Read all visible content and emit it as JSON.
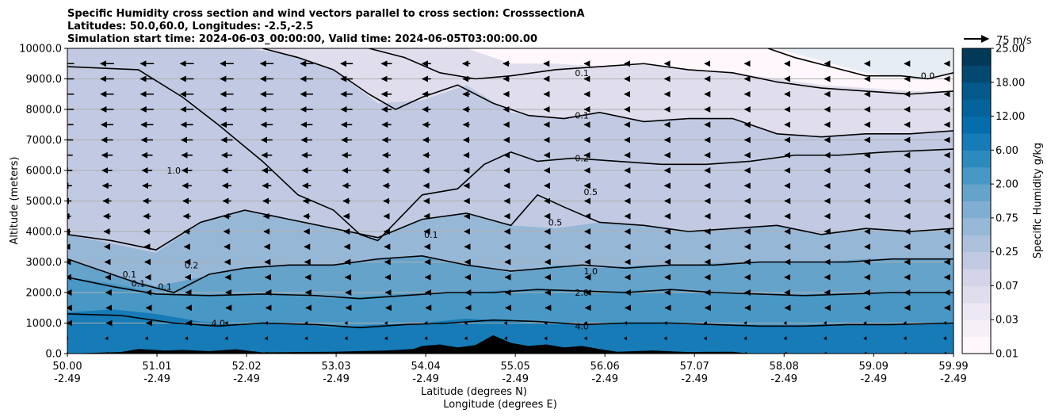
{
  "chart_data": {
    "type": "contourf",
    "title_lines": [
      "Specific Humidity cross section and wind vectors parallel to cross section: CrosssectionA",
      "Latitudes: 50.0,60.0, Longitudes: -2.5,-2.5",
      "Simulation start time: 2024-06-03_00:00:00, Valid time: 2024-06-05T03:00:00.00"
    ],
    "xlabel_lines": [
      "Latitude (degrees N)",
      "Longitude (degrees E)"
    ],
    "ylabel": "Altitude (meters)",
    "xlim": [
      50.0,
      59.99
    ],
    "ylim": [
      0,
      10000
    ],
    "x_ticks": [
      {
        "lat": "50.00",
        "lon": "-2.49",
        "value": 50.0
      },
      {
        "lat": "51.01",
        "lon": "-2.49",
        "value": 51.01
      },
      {
        "lat": "52.02",
        "lon": "-2.49",
        "value": 52.02
      },
      {
        "lat": "53.03",
        "lon": "-2.49",
        "value": 53.03
      },
      {
        "lat": "54.04",
        "lon": "-2.49",
        "value": 54.04
      },
      {
        "lat": "55.05",
        "lon": "-2.49",
        "value": 55.05
      },
      {
        "lat": "56.06",
        "lon": "-2.49",
        "value": 56.06
      },
      {
        "lat": "57.07",
        "lon": "-2.49",
        "value": 57.07
      },
      {
        "lat": "58.08",
        "lon": "-2.49",
        "value": 58.08
      },
      {
        "lat": "59.09",
        "lon": "-2.49",
        "value": 59.09
      },
      {
        "lat": "59.99",
        "lon": "-2.49",
        "value": 59.99
      }
    ],
    "y_ticks": [
      {
        "label": "0.0",
        "value": 0
      },
      {
        "label": "1000.0",
        "value": 1000
      },
      {
        "label": "2000.0",
        "value": 2000
      },
      {
        "label": "3000.0",
        "value": 3000
      },
      {
        "label": "4000.0",
        "value": 4000
      },
      {
        "label": "5000.0",
        "value": 5000
      },
      {
        "label": "6000.0",
        "value": 6000
      },
      {
        "label": "7000.0",
        "value": 7000
      },
      {
        "label": "8000.0",
        "value": 8000
      },
      {
        "label": "9000.0",
        "value": 9000
      },
      {
        "label": "10000.0",
        "value": 10000
      }
    ],
    "grid": "horizontal",
    "colorbar": {
      "label": "Specific Humidity g/kg",
      "levels": [
        0.01,
        0.02,
        0.03,
        0.05,
        0.07,
        0.1,
        0.25,
        0.5,
        0.75,
        1.0,
        2.0,
        4.0,
        6.0,
        9.0,
        12.0,
        15.0,
        18.0,
        21.0,
        25.0
      ],
      "tick_labels": [
        "0.01",
        "0.03",
        "0.07",
        "0.25",
        "0.75",
        "2.00",
        "6.00",
        "12.00",
        "18.00",
        "25.00"
      ],
      "tick_level_indices": [
        0,
        2,
        4,
        6,
        8,
        10,
        12,
        14,
        16,
        18
      ],
      "colormap": "PuBu"
    },
    "field_bands": [
      {
        "x": [
          50.0,
          50.5,
          51.0,
          51.5,
          52.0,
          52.5,
          53.0,
          53.5,
          54.0,
          54.5,
          55.0,
          55.5,
          56.0,
          56.5,
          57.0,
          57.5,
          58.0,
          58.5,
          59.0,
          59.5,
          59.99
        ],
        "upper_alt": [
          1350,
          1450,
          1300,
          1050,
          1000,
          1000,
          850,
          950,
          1000,
          1150,
          1050,
          950,
          1000,
          1000,
          950,
          950,
          900,
          950,
          950,
          1000,
          1000
        ],
        "value": 6.0
      },
      {
        "x": [
          50.0,
          50.5,
          51.0,
          51.5,
          52.0,
          52.5,
          53.0,
          53.5,
          54.0,
          54.5,
          55.0,
          55.5,
          56.0,
          56.5,
          57.0,
          57.5,
          58.0,
          58.5,
          59.0,
          59.5,
          59.99
        ],
        "upper_alt": [
          2500,
          2300,
          2000,
          1900,
          1950,
          1900,
          1800,
          1900,
          2000,
          2000,
          2100,
          2100,
          2000,
          2100,
          2000,
          1950,
          1900,
          1950,
          2000,
          2000,
          2000
        ],
        "value": 2.0
      },
      {
        "x": [
          50.0,
          50.5,
          51.0,
          51.5,
          52.0,
          52.5,
          53.0,
          53.5,
          54.0,
          54.5,
          55.0,
          55.5,
          56.0,
          56.5,
          57.0,
          57.5,
          58.0,
          58.5,
          59.0,
          59.5,
          59.99
        ],
        "upper_alt": [
          3100,
          2600,
          2200,
          2500,
          2800,
          2900,
          2900,
          3100,
          3200,
          2900,
          2650,
          2900,
          2800,
          2900,
          2900,
          3000,
          3000,
          3000,
          3100,
          3100,
          3100
        ],
        "value": 1.0
      },
      {
        "x": [
          50.0,
          50.5,
          51.0,
          51.5,
          52.0,
          52.5,
          53.0,
          53.5,
          54.0,
          54.5,
          55.0,
          55.5,
          56.0,
          56.5,
          57.0,
          57.5,
          58.0,
          58.5,
          59.0,
          59.5,
          59.99
        ],
        "upper_alt": [
          3900,
          3600,
          3300,
          4300,
          4700,
          4400,
          4100,
          3800,
          4400,
          4600,
          4200,
          4100,
          4300,
          4200,
          4000,
          4100,
          4200,
          3900,
          4100,
          4000,
          4100
        ],
        "value": 0.5
      },
      {
        "x": [
          50.0,
          50.5,
          51.0,
          51.5,
          52.0,
          52.5,
          53.0,
          53.5,
          54.0,
          54.5,
          55.0,
          55.5,
          56.0,
          56.5,
          57.0,
          57.5,
          58.0,
          58.5,
          59.0,
          59.5,
          59.99
        ],
        "upper_alt": [
          9400,
          9300,
          8500,
          7500,
          6500,
          5200,
          4600,
          3700,
          5300,
          6300,
          6600,
          6400,
          6400,
          6300,
          6200,
          6200,
          6500,
          6500,
          6600,
          6700,
          6700
        ],
        "value": 0.2
      },
      {
        "x": [
          50.0,
          50.5,
          51.0,
          51.5,
          52.0,
          52.5,
          53.0,
          53.5,
          54.0,
          54.5,
          55.0,
          55.5,
          56.0,
          56.5,
          57.0,
          57.5,
          58.0,
          58.5,
          59.0,
          59.5,
          59.99
        ],
        "upper_alt": [
          10000,
          10000,
          10000,
          10000,
          10000,
          9800,
          9300,
          8200,
          8300,
          8800,
          7900,
          7700,
          7900,
          7600,
          7700,
          7700,
          7200,
          7100,
          7200,
          7200,
          7300
        ],
        "value": 0.1
      },
      {
        "x": [
          50.0,
          50.5,
          51.0,
          51.5,
          52.0,
          52.5,
          53.0,
          53.5,
          54.0,
          54.5,
          55.0,
          55.5,
          56.0,
          56.5,
          57.0,
          57.5,
          58.0,
          58.5,
          59.0,
          59.5,
          59.99
        ],
        "upper_alt": [
          10000,
          10000,
          10000,
          10000,
          10000,
          10000,
          10000,
          10000,
          10000,
          10000,
          9500,
          9500,
          9400,
          9500,
          9300,
          9200,
          9000,
          8800,
          8700,
          8600,
          8600
        ],
        "value": 0.05
      },
      {
        "x": [
          50.0,
          50.5,
          51.0,
          51.5,
          52.0,
          52.5,
          53.0,
          53.5,
          54.0,
          54.5,
          55.0,
          55.5,
          56.0,
          56.5,
          57.0,
          57.5,
          58.0,
          58.5,
          59.0,
          59.5,
          59.99
        ],
        "upper_alt": [
          10000,
          10000,
          10000,
          10000,
          10000,
          10000,
          10000,
          10000,
          10000,
          10000,
          10000,
          10000,
          10000,
          10000,
          10000,
          10000,
          10000,
          9600,
          9200,
          9000,
          9100
        ],
        "value": 0.01
      }
    ],
    "contour_lines": [
      {
        "level": "4.0",
        "x": [
          50.0,
          50.6,
          51.2,
          51.7,
          52.2,
          52.8,
          53.3,
          53.8,
          54.3,
          54.8,
          55.3,
          55.8,
          56.3,
          56.8,
          57.3,
          57.8,
          58.3,
          58.8,
          59.3,
          59.99
        ],
        "alt": [
          1300,
          1250,
          1000,
          900,
          1000,
          950,
          850,
          950,
          1000,
          1100,
          1050,
          950,
          1000,
          1000,
          950,
          900,
          900,
          950,
          950,
          1000
        ]
      },
      {
        "level": "2.0",
        "x": [
          50.0,
          50.5,
          51.0,
          51.6,
          52.2,
          52.8,
          53.3,
          53.8,
          54.3,
          54.8,
          55.3,
          55.8,
          56.3,
          56.8,
          57.3,
          57.8,
          58.3,
          58.8,
          59.3,
          59.99
        ],
        "alt": [
          2500,
          2200,
          1950,
          1900,
          1950,
          1900,
          1800,
          1900,
          2000,
          2000,
          2100,
          2050,
          2000,
          2100,
          2000,
          1950,
          1900,
          1950,
          2000,
          2000
        ]
      },
      {
        "level": "1.0",
        "x": [
          50.0,
          50.4,
          50.8,
          51.2,
          51.6,
          52.0,
          52.5,
          53.0,
          53.5,
          54.0,
          54.5,
          55.0,
          55.4,
          55.8,
          56.3,
          56.8,
          57.3,
          57.8,
          58.3,
          58.8,
          59.3,
          59.99
        ],
        "alt": [
          3100,
          2700,
          2300,
          2000,
          2600,
          2800,
          2900,
          2900,
          3100,
          3200,
          2900,
          2700,
          2800,
          2900,
          2800,
          2900,
          2900,
          3000,
          3000,
          3000,
          3100,
          3100
        ]
      },
      {
        "level": "0.5",
        "x": [
          50.0,
          50.5,
          51.0,
          51.5,
          52.0,
          52.5,
          53.0,
          53.5,
          54.0,
          54.5,
          55.0,
          55.3,
          55.6,
          56.0,
          56.5,
          57.0,
          57.5,
          58.0,
          58.5,
          59.0,
          59.5,
          59.99
        ],
        "alt": [
          3900,
          3700,
          3400,
          4300,
          4700,
          4400,
          4100,
          3800,
          4400,
          4600,
          4200,
          5200,
          4800,
          4300,
          4200,
          4000,
          4100,
          4200,
          3900,
          4100,
          4000,
          4100
        ]
      },
      {
        "level": "0.2",
        "x": [
          50.0,
          50.8,
          51.3,
          51.7,
          52.2,
          52.6,
          53.0,
          53.3,
          53.5,
          53.7,
          54.0,
          54.4,
          54.7,
          55.0,
          55.3,
          55.7,
          56.2,
          56.7,
          57.2,
          57.7,
          58.2,
          58.7,
          59.2,
          59.99
        ],
        "alt": [
          9400,
          9300,
          8400,
          7500,
          6300,
          5200,
          4700,
          3900,
          3700,
          4300,
          5200,
          5400,
          6200,
          6600,
          6300,
          6400,
          6300,
          6200,
          6200,
          6300,
          6500,
          6500,
          6600,
          6700
        ]
      },
      {
        "level": "0.1",
        "x": [
          52.2,
          52.6,
          53.0,
          53.4,
          53.7,
          54.0,
          54.4,
          54.8,
          55.2,
          55.6,
          56.0,
          56.5,
          57.0,
          57.5,
          58.0,
          58.5,
          59.0,
          59.5,
          59.99
        ],
        "alt": [
          10000,
          9700,
          9300,
          8500,
          8000,
          8400,
          8800,
          8200,
          7800,
          7700,
          7900,
          7600,
          7700,
          7700,
          7200,
          7100,
          7200,
          7200,
          7300
        ]
      },
      {
        "level": "0.1",
        "x": [
          53.4,
          53.8,
          54.2,
          54.6,
          55.0,
          55.5,
          56.0,
          56.5,
          57.0,
          57.5,
          58.0,
          58.5,
          59.0,
          59.5,
          59.99
        ],
        "alt": [
          10000,
          9700,
          9200,
          9000,
          9100,
          9300,
          9400,
          9500,
          9300,
          9200,
          8900,
          8700,
          8600,
          8500,
          8600
        ]
      },
      {
        "level": "0.0",
        "x": [
          57.9,
          58.2,
          58.6,
          59.0,
          59.4,
          59.7,
          59.99
        ],
        "alt": [
          10000,
          9700,
          9400,
          9100,
          9100,
          9000,
          9200
        ]
      }
    ],
    "contour_labels": [
      {
        "text": "0.1",
        "x": 55.8,
        "alt": 9200
      },
      {
        "text": "0.1",
        "x": 55.8,
        "alt": 7800
      },
      {
        "text": "0.2",
        "x": 55.8,
        "alt": 6400
      },
      {
        "text": "0.5",
        "x": 55.9,
        "alt": 5300
      },
      {
        "text": "0.5",
        "x": 55.5,
        "alt": 4300
      },
      {
        "text": "1.0",
        "x": 55.9,
        "alt": 2700
      },
      {
        "text": "2.0",
        "x": 55.8,
        "alt": 2000
      },
      {
        "text": "4.0",
        "x": 55.8,
        "alt": 900
      },
      {
        "text": "1.0",
        "x": 51.2,
        "alt": 6000
      },
      {
        "text": "0.2",
        "x": 51.4,
        "alt": 2900
      },
      {
        "text": "0.1",
        "x": 50.7,
        "alt": 2600
      },
      {
        "text": "0.1",
        "x": 50.8,
        "alt": 2300
      },
      {
        "text": "0.1",
        "x": 51.1,
        "alt": 2200
      },
      {
        "text": "4.0",
        "x": 51.7,
        "alt": 1000
      },
      {
        "text": "0.1",
        "x": 54.1,
        "alt": 3900
      },
      {
        "text": "0.0",
        "x": 59.7,
        "alt": 9100
      }
    ],
    "terrain": {
      "x": [
        50.0,
        50.6,
        50.8,
        51.1,
        51.3,
        51.6,
        51.9,
        52.2,
        53.0,
        53.3,
        53.6,
        53.9,
        54.0,
        54.2,
        54.4,
        54.6,
        54.8,
        55.0,
        55.2,
        55.4,
        55.6,
        55.8,
        56.0,
        56.2,
        56.6,
        57.0,
        57.5,
        57.7
      ],
      "alt": [
        0,
        50,
        150,
        100,
        120,
        80,
        140,
        40,
        60,
        80,
        100,
        150,
        250,
        300,
        200,
        280,
        600,
        350,
        250,
        300,
        200,
        250,
        150,
        60,
        100,
        50,
        60,
        0
      ]
    },
    "wind_vectors": {
      "reference_label": "75 m/s",
      "reference_speed": 75,
      "x_columns": [
        50.0,
        50.45,
        50.9,
        51.35,
        51.8,
        52.25,
        52.7,
        53.15,
        53.6,
        54.05,
        54.5,
        54.95,
        55.4,
        55.85,
        56.3,
        56.75,
        57.2,
        57.65,
        58.1,
        58.55,
        59.0,
        59.45,
        59.9
      ],
      "alt_rows": [
        0,
        500,
        1000,
        1500,
        2000,
        2500,
        3000,
        3500,
        4000,
        4500,
        5000,
        5500,
        6000,
        6500,
        7000,
        7500,
        8000,
        8500,
        9000,
        9500
      ],
      "profiles": [
        {
          "x": [
            50.0,
            51.5,
            53.0,
            54.0,
            55.0,
            56.0,
            57.0,
            58.0,
            59.0,
            59.99
          ],
          "u_at_alt": {
            "0": [
              -1,
              -1,
              -1,
              -1,
              -1,
              -1,
              -1,
              -1,
              -1,
              -1
            ],
            "2000": [
              -6,
              -6,
              -5,
              -5,
              -5,
              -5,
              -5,
              -5,
              -5,
              -5
            ],
            "4000": [
              -14,
              -14,
              -12,
              -10,
              -8,
              -6,
              -5,
              -5,
              -4,
              -4
            ],
            "6000": [
              -22,
              -22,
              -20,
              -14,
              -10,
              -7,
              -6,
              -5,
              -5,
              -5
            ],
            "8000": [
              -28,
              -28,
              -26,
              -18,
              -12,
              -8,
              -6,
              -5,
              -5,
              -5
            ],
            "10000": [
              -30,
              -30,
              -28,
              -20,
              -14,
              -8,
              -6,
              -6,
              -5,
              -5
            ]
          }
        }
      ]
    }
  }
}
